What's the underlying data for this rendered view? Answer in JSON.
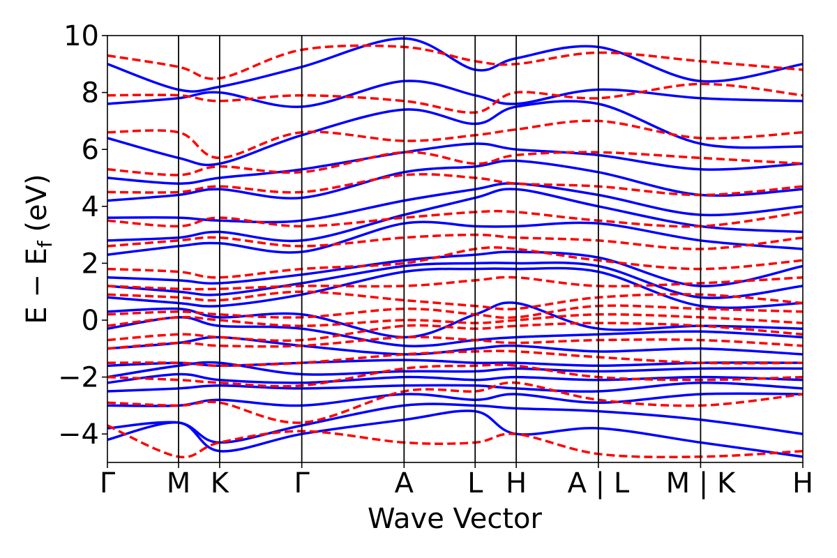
{
  "chart_data": {
    "type": "line",
    "title": "",
    "xlabel": "Wave Vector",
    "ylabel": "E − E",
    "ylabel_subscript": "f",
    "ylabel_unit": " (eV)",
    "ylim": [
      -5,
      10
    ],
    "xlim": [
      0,
      1
    ],
    "grid": false,
    "legend": "none",
    "y_ticks": [
      -4,
      -2,
      0,
      2,
      4,
      6,
      8,
      10
    ],
    "y_tick_labels": [
      "−4",
      "−2",
      "0",
      "2",
      "4",
      "6",
      "8",
      "10"
    ],
    "k_points": [
      {
        "label": "Γ",
        "x": 0.0
      },
      {
        "label": "M",
        "x": 0.1023
      },
      {
        "label": "K",
        "x": 0.1614
      },
      {
        "label": "Γ",
        "x": 0.2795
      },
      {
        "label": "A",
        "x": 0.4266
      },
      {
        "label": "L",
        "x": 0.5288
      },
      {
        "label": "H",
        "x": 0.5879
      },
      {
        "label": "A|L",
        "x": 0.706
      },
      {
        "label": "M|K",
        "x": 0.853
      },
      {
        "label": "H",
        "x": 1.0
      }
    ],
    "series_colors": {
      "solid": "#0000ff",
      "dashed": "#ff0000"
    },
    "series": [
      {
        "style": "solid",
        "color": "#0000ff",
        "x": [
          0,
          0.1023,
          0.1614,
          0.2795,
          0.4266,
          0.5288,
          0.5879,
          0.706,
          0.853,
          1.0
        ],
        "y": [
          -4.2,
          -3.6,
          -4.6,
          -4.0,
          -3.5,
          -3.2,
          -4.0,
          -3.8,
          -4.3,
          -4.8
        ]
      },
      {
        "style": "solid",
        "color": "#0000ff",
        "x": [
          0,
          0.1023,
          0.1614,
          0.2795,
          0.4266,
          0.5288,
          0.5879,
          0.706,
          0.853,
          1.0
        ],
        "y": [
          -3.8,
          -3.6,
          -4.3,
          -3.7,
          -3.0,
          -3.0,
          -3.1,
          -3.2,
          -3.5,
          -4.0
        ]
      },
      {
        "style": "solid",
        "color": "#0000ff",
        "x": [
          0,
          0.1023,
          0.1614,
          0.2795,
          0.4266,
          0.5288,
          0.5879,
          0.706,
          0.853,
          1.0
        ],
        "y": [
          -3.0,
          -3.0,
          -2.8,
          -3.0,
          -2.6,
          -2.8,
          -2.6,
          -2.9,
          -2.6,
          -2.6
        ]
      },
      {
        "style": "solid",
        "color": "#0000ff",
        "x": [
          0,
          0.1023,
          0.1614,
          0.2795,
          0.4266,
          0.5288,
          0.5879,
          0.706,
          0.853,
          1.0
        ],
        "y": [
          -2.5,
          -2.4,
          -2.3,
          -2.4,
          -2.3,
          -2.3,
          -2.4,
          -2.5,
          -2.2,
          -2.4
        ]
      },
      {
        "style": "solid",
        "color": "#0000ff",
        "x": [
          0,
          0.1023,
          0.1614,
          0.2795,
          0.4266,
          0.5288,
          0.5879,
          0.706,
          0.853,
          1.0
        ],
        "y": [
          -2.2,
          -1.9,
          -2.1,
          -2.2,
          -2.0,
          -2.1,
          -2.0,
          -2.1,
          -2.0,
          -2.1
        ]
      },
      {
        "style": "solid",
        "color": "#0000ff",
        "x": [
          0,
          0.1023,
          0.1614,
          0.2795,
          0.4266,
          0.5288,
          0.5879,
          0.706,
          0.853,
          1.0
        ],
        "y": [
          -2.0,
          -1.6,
          -1.5,
          -1.9,
          -1.8,
          -1.8,
          -1.7,
          -1.8,
          -1.7,
          -1.7
        ]
      },
      {
        "style": "solid",
        "color": "#0000ff",
        "x": [
          0,
          0.1023,
          0.1614,
          0.2795,
          0.4266,
          0.5288,
          0.5879,
          0.706,
          0.853,
          1.0
        ],
        "y": [
          -1.6,
          -1.5,
          -1.6,
          -1.5,
          -1.4,
          -1.5,
          -1.5,
          -1.6,
          -1.5,
          -1.5
        ]
      },
      {
        "style": "solid",
        "color": "#0000ff",
        "x": [
          0,
          0.1023,
          0.1614,
          0.2795,
          0.4266,
          0.5288,
          0.5879,
          0.706,
          0.853,
          1.0
        ],
        "y": [
          -1.0,
          -0.8,
          -0.6,
          -0.9,
          -1.2,
          -1.0,
          -0.9,
          -1.1,
          -1.0,
          -1.2
        ]
      },
      {
        "style": "solid",
        "color": "#0000ff",
        "x": [
          0,
          0.1023,
          0.1614,
          0.2795,
          0.4266,
          0.5288,
          0.5879,
          0.706,
          0.853,
          1.0
        ],
        "y": [
          -0.3,
          0.1,
          -0.2,
          -0.3,
          -0.9,
          -0.7,
          -0.6,
          -0.5,
          -0.4,
          -0.6
        ]
      },
      {
        "style": "solid",
        "color": "#0000ff",
        "x": [
          0,
          0.1023,
          0.1614,
          0.2795,
          0.4266,
          0.5288,
          0.5879,
          0.706,
          0.853,
          1.0
        ],
        "y": [
          0.3,
          0.4,
          0.1,
          0.2,
          -0.6,
          0.2,
          0.6,
          -0.3,
          -0.2,
          -0.3
        ]
      },
      {
        "style": "solid",
        "color": "#0000ff",
        "x": [
          0,
          0.1023,
          0.1614,
          0.2795,
          0.4266,
          0.5288,
          0.5879,
          0.706,
          0.853,
          1.0
        ],
        "y": [
          0.8,
          0.6,
          0.5,
          0.9,
          1.7,
          1.8,
          1.8,
          1.7,
          0.5,
          0.6
        ]
      },
      {
        "style": "solid",
        "color": "#0000ff",
        "x": [
          0,
          0.1023,
          0.1614,
          0.2795,
          0.4266,
          0.5288,
          0.5879,
          0.706,
          0.853,
          1.0
        ],
        "y": [
          1.2,
          1.0,
          0.9,
          1.3,
          1.9,
          2.0,
          2.0,
          1.9,
          0.8,
          1.2
        ]
      },
      {
        "style": "solid",
        "color": "#0000ff",
        "x": [
          0,
          0.1023,
          0.1614,
          0.2795,
          0.4266,
          0.5288,
          0.5879,
          0.706,
          0.853,
          1.0
        ],
        "y": [
          1.5,
          1.4,
          1.3,
          1.6,
          2.1,
          2.3,
          2.4,
          2.2,
          1.2,
          1.9
        ]
      },
      {
        "style": "solid",
        "color": "#0000ff",
        "x": [
          0,
          0.1023,
          0.1614,
          0.2795,
          0.4266,
          0.5288,
          0.5879,
          0.706,
          0.853,
          1.0
        ],
        "y": [
          2.3,
          2.6,
          2.7,
          2.4,
          3.4,
          3.3,
          3.3,
          3.4,
          2.8,
          2.5
        ]
      },
      {
        "style": "solid",
        "color": "#0000ff",
        "x": [
          0,
          0.1023,
          0.1614,
          0.2795,
          0.4266,
          0.5288,
          0.5879,
          0.706,
          0.853,
          1.0
        ],
        "y": [
          2.8,
          2.9,
          3.1,
          2.8,
          3.7,
          4.3,
          4.6,
          4.0,
          3.3,
          3.1
        ]
      },
      {
        "style": "solid",
        "color": "#0000ff",
        "x": [
          0,
          0.1023,
          0.1614,
          0.2795,
          0.4266,
          0.5288,
          0.5879,
          0.706,
          0.853,
          1.0
        ],
        "y": [
          3.6,
          3.6,
          3.5,
          3.5,
          4.2,
          4.6,
          4.8,
          4.4,
          3.7,
          4.0
        ]
      },
      {
        "style": "solid",
        "color": "#0000ff",
        "x": [
          0,
          0.1023,
          0.1614,
          0.2795,
          0.4266,
          0.5288,
          0.5879,
          0.706,
          0.853,
          1.0
        ],
        "y": [
          4.2,
          4.4,
          4.6,
          4.3,
          5.2,
          5.4,
          5.6,
          5.2,
          4.4,
          4.6
        ]
      },
      {
        "style": "solid",
        "color": "#0000ff",
        "x": [
          0,
          0.1023,
          0.1614,
          0.2795,
          0.4266,
          0.5288,
          0.5879,
          0.706,
          0.853,
          1.0
        ],
        "y": [
          5.0,
          4.8,
          5.0,
          5.3,
          5.9,
          6.2,
          6.0,
          5.8,
          5.3,
          5.5
        ]
      },
      {
        "style": "solid",
        "color": "#0000ff",
        "x": [
          0,
          0.1023,
          0.1614,
          0.2795,
          0.4266,
          0.5288,
          0.5879,
          0.706,
          0.853,
          1.0
        ],
        "y": [
          6.4,
          5.7,
          5.5,
          6.5,
          7.4,
          6.9,
          7.5,
          7.6,
          6.2,
          6.1
        ]
      },
      {
        "style": "solid",
        "color": "#0000ff",
        "x": [
          0,
          0.1023,
          0.1614,
          0.2795,
          0.4266,
          0.5288,
          0.5879,
          0.706,
          0.853,
          1.0
        ],
        "y": [
          7.6,
          7.8,
          8.0,
          7.5,
          8.4,
          7.9,
          7.6,
          8.1,
          7.8,
          7.7
        ]
      },
      {
        "style": "solid",
        "color": "#0000ff",
        "x": [
          0,
          0.1023,
          0.1614,
          0.2795,
          0.4266,
          0.5288,
          0.5879,
          0.706,
          0.853,
          1.0
        ],
        "y": [
          9.0,
          8.1,
          8.2,
          8.9,
          9.9,
          8.8,
          9.2,
          9.6,
          8.4,
          9.0
        ]
      },
      {
        "style": "dashed",
        "color": "#ff0000",
        "x": [
          0,
          0.1023,
          0.1614,
          0.2795,
          0.4266,
          0.5288,
          0.5879,
          0.706,
          0.853,
          1.0
        ],
        "y": [
          -3.7,
          -4.8,
          -4.3,
          -3.9,
          -4.3,
          -4.3,
          -4.0,
          -4.7,
          -4.8,
          -4.6
        ]
      },
      {
        "style": "dashed",
        "color": "#ff0000",
        "x": [
          0,
          0.1023,
          0.1614,
          0.2795,
          0.4266,
          0.5288,
          0.5879,
          0.706,
          0.853,
          1.0
        ],
        "y": [
          -2.9,
          -3.0,
          -2.9,
          -3.6,
          -2.5,
          -2.5,
          -2.2,
          -2.8,
          -3.0,
          -2.6
        ]
      },
      {
        "style": "dashed",
        "color": "#ff0000",
        "x": [
          0,
          0.1023,
          0.1614,
          0.2795,
          0.4266,
          0.5288,
          0.5879,
          0.706,
          0.853,
          1.0
        ],
        "y": [
          -2.0,
          -2.1,
          -2.2,
          -2.3,
          -1.7,
          -1.6,
          -1.6,
          -2.0,
          -2.1,
          -2.0
        ]
      },
      {
        "style": "dashed",
        "color": "#ff0000",
        "x": [
          0,
          0.1023,
          0.1614,
          0.2795,
          0.4266,
          0.5288,
          0.5879,
          0.706,
          0.853,
          1.0
        ],
        "y": [
          -1.5,
          -1.5,
          -1.6,
          -1.5,
          -1.2,
          -1.1,
          -1.1,
          -1.3,
          -1.5,
          -1.5
        ]
      },
      {
        "style": "dashed",
        "color": "#ff0000",
        "x": [
          0,
          0.1023,
          0.1614,
          0.2795,
          0.4266,
          0.5288,
          0.5879,
          0.706,
          0.853,
          1.0
        ],
        "y": [
          -1.0,
          -0.8,
          -0.9,
          -0.9,
          -0.6,
          -0.7,
          -0.8,
          -0.7,
          -0.7,
          -0.9
        ]
      },
      {
        "style": "dashed",
        "color": "#ff0000",
        "x": [
          0,
          0.1023,
          0.1614,
          0.2795,
          0.4266,
          0.5288,
          0.5879,
          0.706,
          0.853,
          1.0
        ],
        "y": [
          -0.7,
          -0.5,
          -0.6,
          -0.7,
          -0.2,
          -0.3,
          -0.2,
          -0.1,
          -0.2,
          -0.5
        ]
      },
      {
        "style": "dashed",
        "color": "#ff0000",
        "x": [
          0,
          0.1023,
          0.1614,
          0.2795,
          0.4266,
          0.5288,
          0.5879,
          0.706,
          0.853,
          1.0
        ],
        "y": [
          -0.2,
          0.1,
          0.0,
          -0.2,
          0.0,
          -0.1,
          0.0,
          0.2,
          0.1,
          -0.1
        ]
      },
      {
        "style": "dashed",
        "color": "#ff0000",
        "x": [
          0,
          0.1023,
          0.1614,
          0.2795,
          0.4266,
          0.5288,
          0.5879,
          0.706,
          0.853,
          1.0
        ],
        "y": [
          0.2,
          0.3,
          0.2,
          0.1,
          0.4,
          0.2,
          0.1,
          0.5,
          0.4,
          0.3
        ]
      },
      {
        "style": "dashed",
        "color": "#ff0000",
        "x": [
          0,
          0.1023,
          0.1614,
          0.2795,
          0.4266,
          0.5288,
          0.5879,
          0.706,
          0.853,
          1.0
        ],
        "y": [
          0.9,
          0.8,
          0.7,
          1.0,
          0.7,
          0.5,
          0.4,
          0.8,
          0.9,
          0.6
        ]
      },
      {
        "style": "dashed",
        "color": "#ff0000",
        "x": [
          0,
          0.1023,
          0.1614,
          0.2795,
          0.4266,
          0.5288,
          0.5879,
          0.706,
          0.853,
          1.0
        ],
        "y": [
          1.2,
          1.1,
          1.1,
          1.2,
          1.2,
          1.4,
          1.5,
          1.2,
          1.3,
          1.5
        ]
      },
      {
        "style": "dashed",
        "color": "#ff0000",
        "x": [
          0,
          0.1023,
          0.1614,
          0.2795,
          0.4266,
          0.5288,
          0.5879,
          0.706,
          0.853,
          1.0
        ],
        "y": [
          1.8,
          1.7,
          1.5,
          1.8,
          2.0,
          2.5,
          2.5,
          2.1,
          1.8,
          2.1
        ]
      },
      {
        "style": "dashed",
        "color": "#ff0000",
        "x": [
          0,
          0.1023,
          0.1614,
          0.2795,
          0.4266,
          0.5288,
          0.5879,
          0.706,
          0.853,
          1.0
        ],
        "y": [
          2.6,
          2.8,
          2.9,
          2.6,
          2.9,
          3.0,
          2.9,
          2.8,
          2.5,
          2.9
        ]
      },
      {
        "style": "dashed",
        "color": "#ff0000",
        "x": [
          0,
          0.1023,
          0.1614,
          0.2795,
          0.4266,
          0.5288,
          0.5879,
          0.706,
          0.853,
          1.0
        ],
        "y": [
          3.5,
          3.3,
          3.6,
          3.3,
          3.6,
          3.8,
          3.8,
          3.5,
          3.3,
          3.8
        ]
      },
      {
        "style": "dashed",
        "color": "#ff0000",
        "x": [
          0,
          0.1023,
          0.1614,
          0.2795,
          0.4266,
          0.5288,
          0.5879,
          0.706,
          0.853,
          1.0
        ],
        "y": [
          4.5,
          4.5,
          4.7,
          4.5,
          5.1,
          5.0,
          4.8,
          4.7,
          4.4,
          4.7
        ]
      },
      {
        "style": "dashed",
        "color": "#ff0000",
        "x": [
          0,
          0.1023,
          0.1614,
          0.2795,
          0.4266,
          0.5288,
          0.5879,
          0.706,
          0.853,
          1.0
        ],
        "y": [
          5.3,
          5.1,
          5.4,
          5.2,
          5.9,
          5.5,
          5.8,
          5.9,
          5.7,
          5.5
        ]
      },
      {
        "style": "dashed",
        "color": "#ff0000",
        "x": [
          0,
          0.1023,
          0.1614,
          0.2795,
          0.4266,
          0.5288,
          0.5879,
          0.706,
          0.853,
          1.0
        ],
        "y": [
          6.6,
          6.6,
          5.7,
          6.6,
          6.3,
          6.5,
          6.7,
          7.0,
          6.4,
          6.6
        ]
      },
      {
        "style": "dashed",
        "color": "#ff0000",
        "x": [
          0,
          0.1023,
          0.1614,
          0.2795,
          0.4266,
          0.5288,
          0.5879,
          0.706,
          0.853,
          1.0
        ],
        "y": [
          7.9,
          7.9,
          7.7,
          7.9,
          7.7,
          7.3,
          8.0,
          7.8,
          8.3,
          7.9
        ]
      },
      {
        "style": "dashed",
        "color": "#ff0000",
        "x": [
          0,
          0.1023,
          0.1614,
          0.2795,
          0.4266,
          0.5288,
          0.5879,
          0.706,
          0.853,
          1.0
        ],
        "y": [
          9.3,
          8.9,
          8.5,
          9.5,
          9.6,
          9.1,
          9.0,
          9.4,
          9.1,
          8.8
        ]
      }
    ]
  }
}
